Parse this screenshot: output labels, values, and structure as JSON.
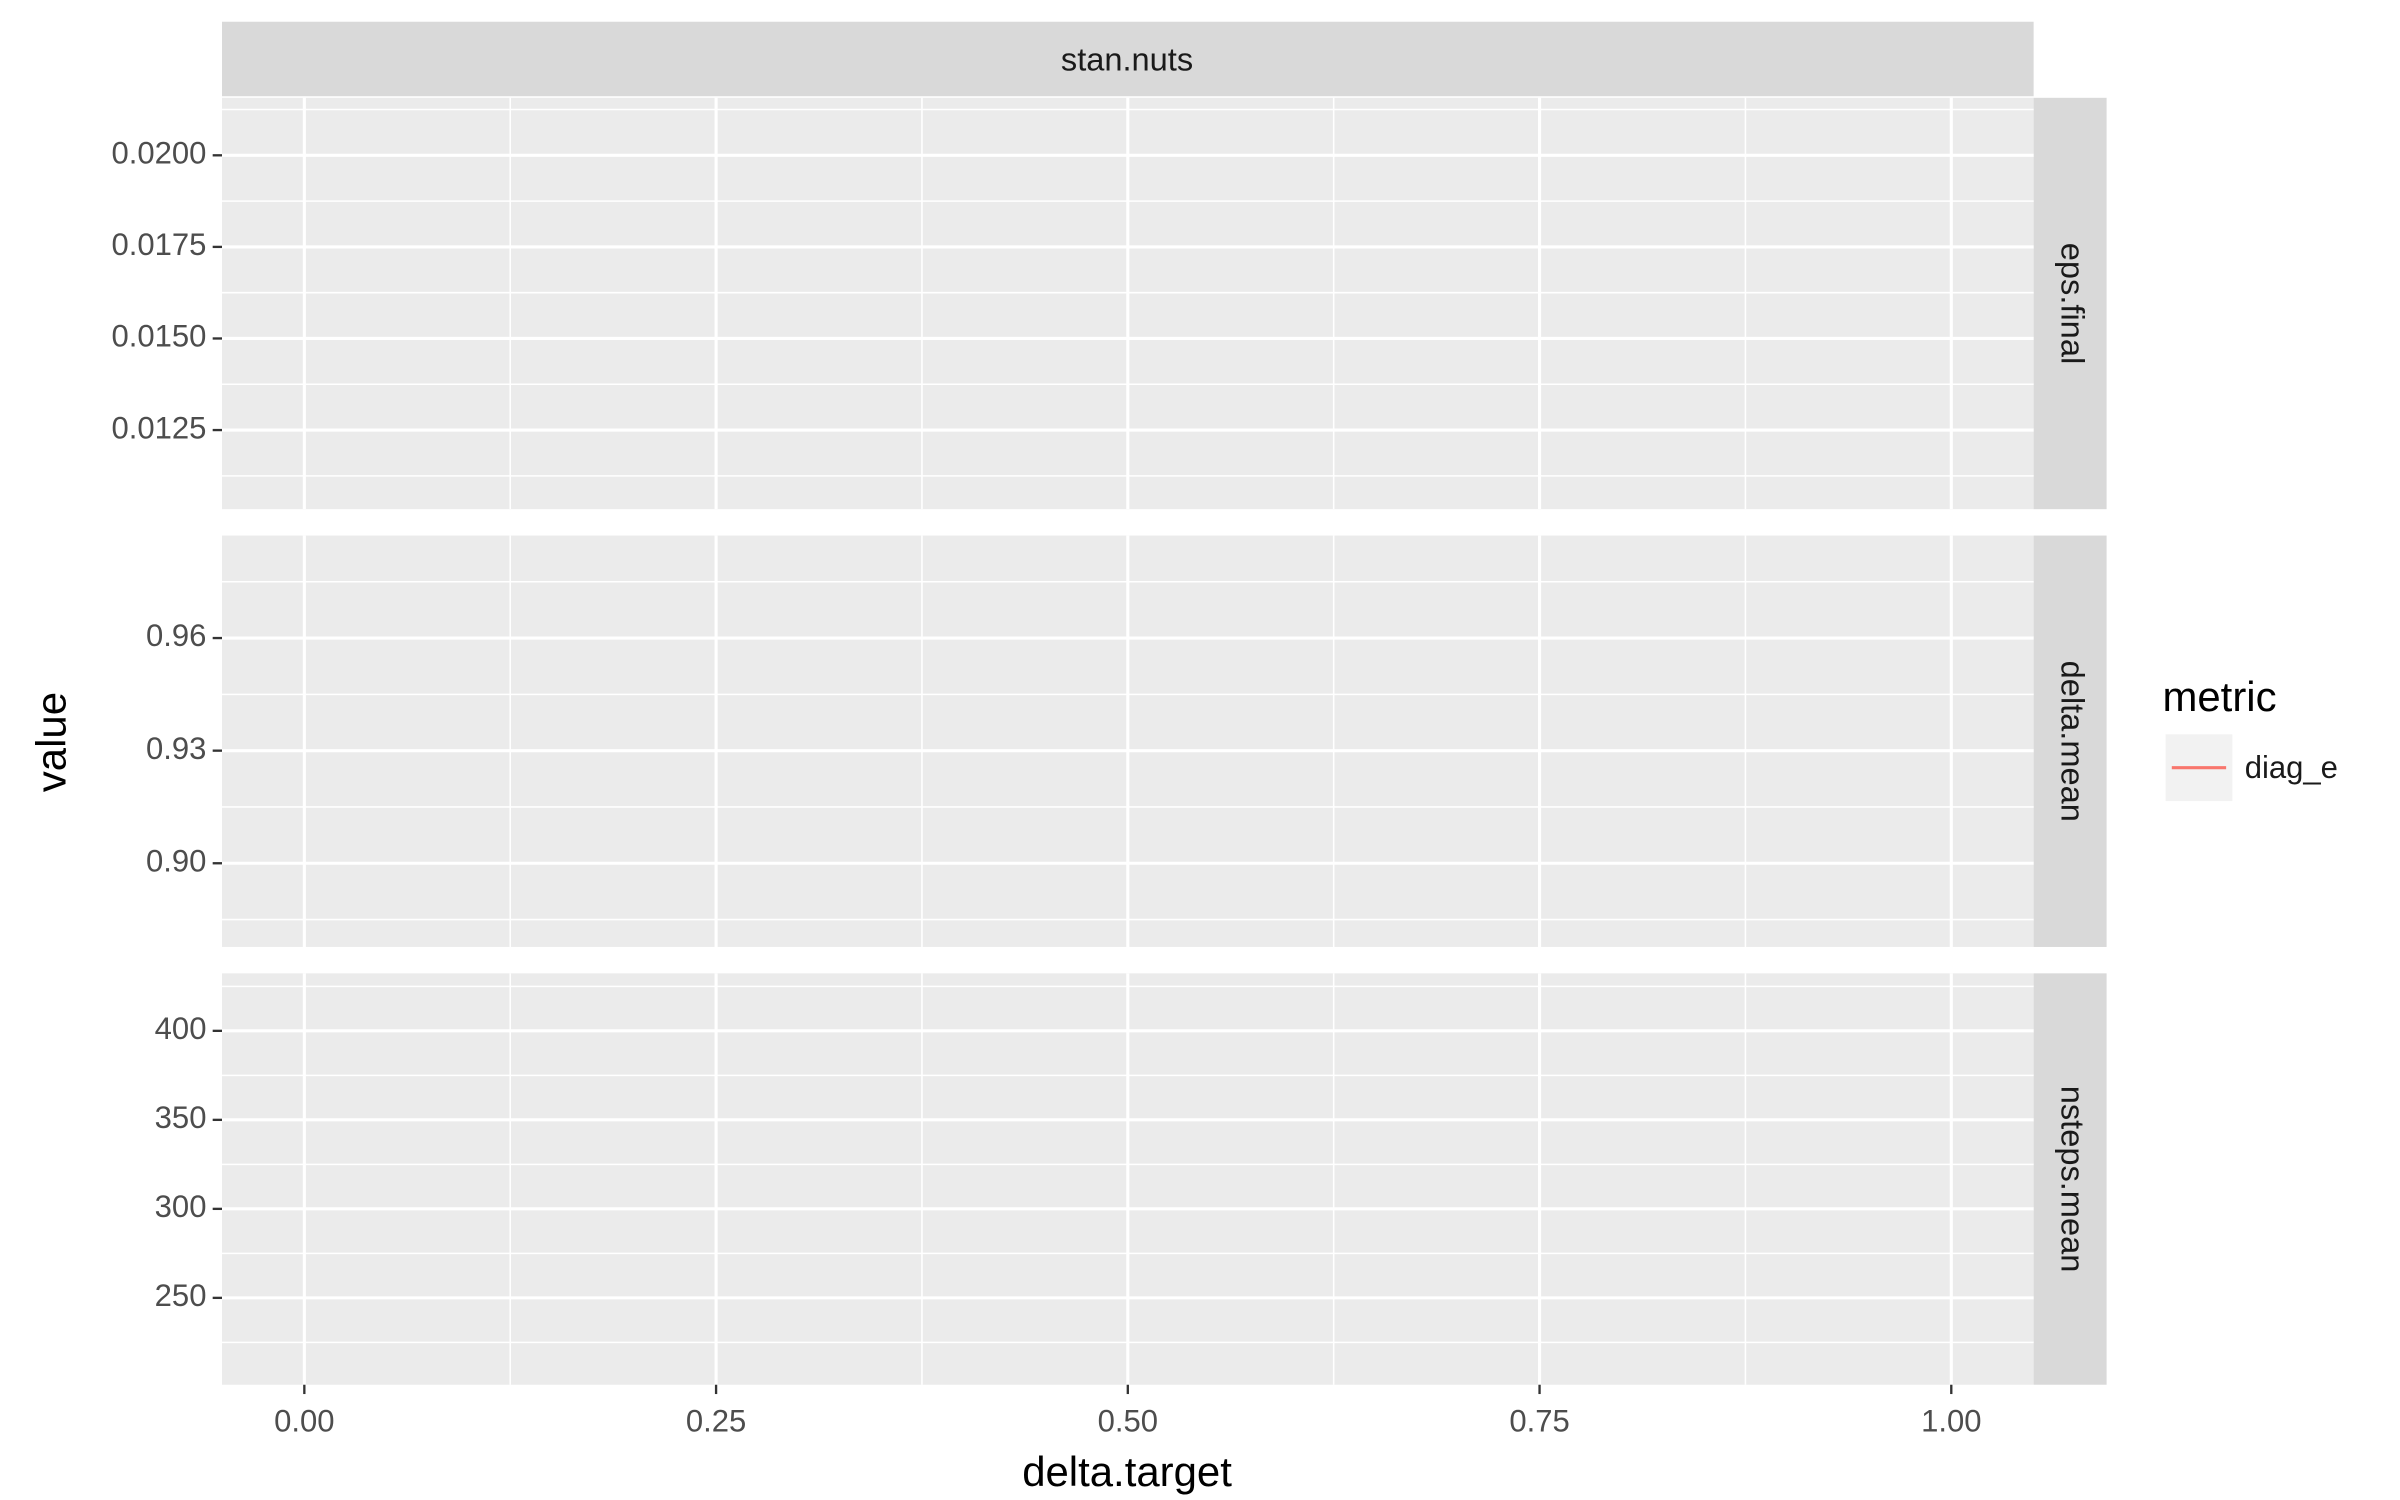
{
  "chart_data": {
    "type": "line",
    "facet_title": "stan.nuts",
    "xlabel": "delta.target",
    "ylabel": "value",
    "legend_title": "metric",
    "grid": true,
    "xlim": [
      -0.05,
      1.05
    ],
    "xticks": [
      {
        "value": 0,
        "label": "0.00"
      },
      0.25,
      {
        "value": 0.5,
        "label": "0.50"
      },
      0.75,
      {
        "value": 1,
        "label": "1.00"
      }
    ],
    "x": [],
    "series": [
      {
        "name": "diag_e",
        "color": "#f8766d",
        "values": []
      }
    ],
    "panels": [
      {
        "strip": "eps.final",
        "ylim": [
          0.01034,
          0.02157
        ],
        "yticks": [
          {
            "value": 0.0125,
            "label": "0.0125"
          },
          {
            "value": 0.015,
            "label": "0.0150"
          },
          0.0175,
          {
            "value": 0.02,
            "label": "0.0200"
          }
        ]
      },
      {
        "strip": "delta.mean",
        "ylim": [
          0.8777,
          0.9873
        ],
        "yticks": [
          {
            "value": 0.9,
            "label": "0.90"
          },
          0.93,
          0.96
        ]
      },
      {
        "strip": "nsteps.mean",
        "ylim": [
          201.2,
          432.3
        ],
        "yticks": [
          250,
          300,
          350,
          400
        ]
      }
    ]
  }
}
